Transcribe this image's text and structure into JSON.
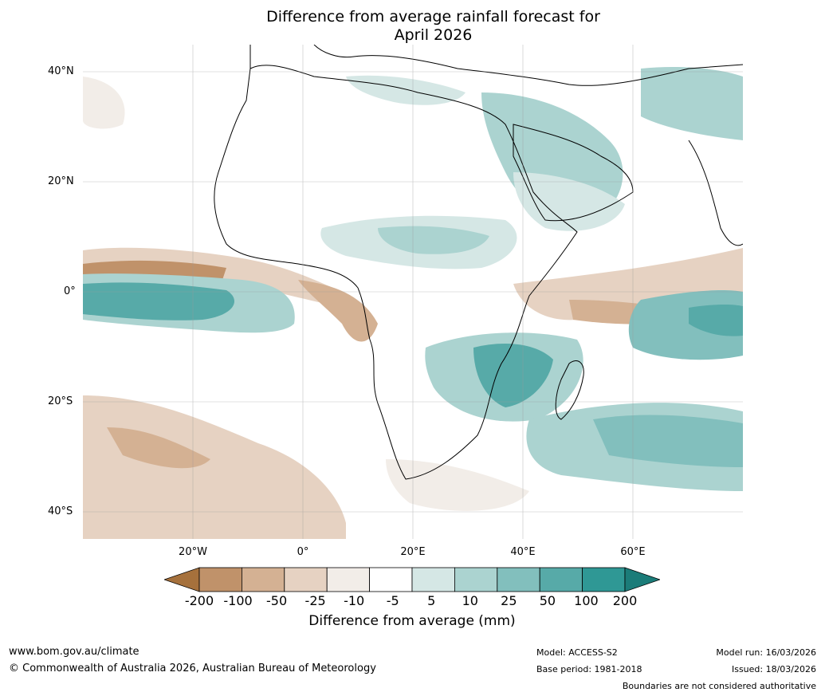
{
  "title": {
    "line1": "Difference from average rainfall forecast for",
    "line2": "April 2026"
  },
  "map": {
    "lat_labels": [
      "40°N",
      "20°N",
      "0°",
      "20°S",
      "40°S"
    ],
    "lon_labels": [
      "20°W",
      "0°",
      "20°E",
      "40°E",
      "60°E"
    ],
    "extent": {
      "lon_min": -40,
      "lon_max": 80,
      "lat_min": -45,
      "lat_max": 45
    }
  },
  "legend": {
    "ticks": [
      "-200",
      "-100",
      "-50",
      "-25",
      "-10",
      "-5",
      "5",
      "10",
      "25",
      "50",
      "100",
      "200"
    ],
    "colors": [
      "#a6713c",
      "#c0926a",
      "#d4b193",
      "#e6d2c2",
      "#f2ede8",
      "#ffffff",
      "#d5e7e5",
      "#abd3d0",
      "#82bfbd",
      "#57aaa8",
      "#2f9895",
      "#1b7c79"
    ],
    "label": "Difference from average (mm)"
  },
  "footer": {
    "website": "www.bom.gov.au/climate",
    "copyright": "© Commonwealth of Australia 2026, Australian Bureau of Meteorology",
    "model": "Model: ACCESS-S2",
    "base_period": "Base period: 1981-2018",
    "model_run": "Model run: 16/03/2026",
    "issued": "Issued: 18/03/2026",
    "disclaimer": "Boundaries are not considered authoritative"
  }
}
